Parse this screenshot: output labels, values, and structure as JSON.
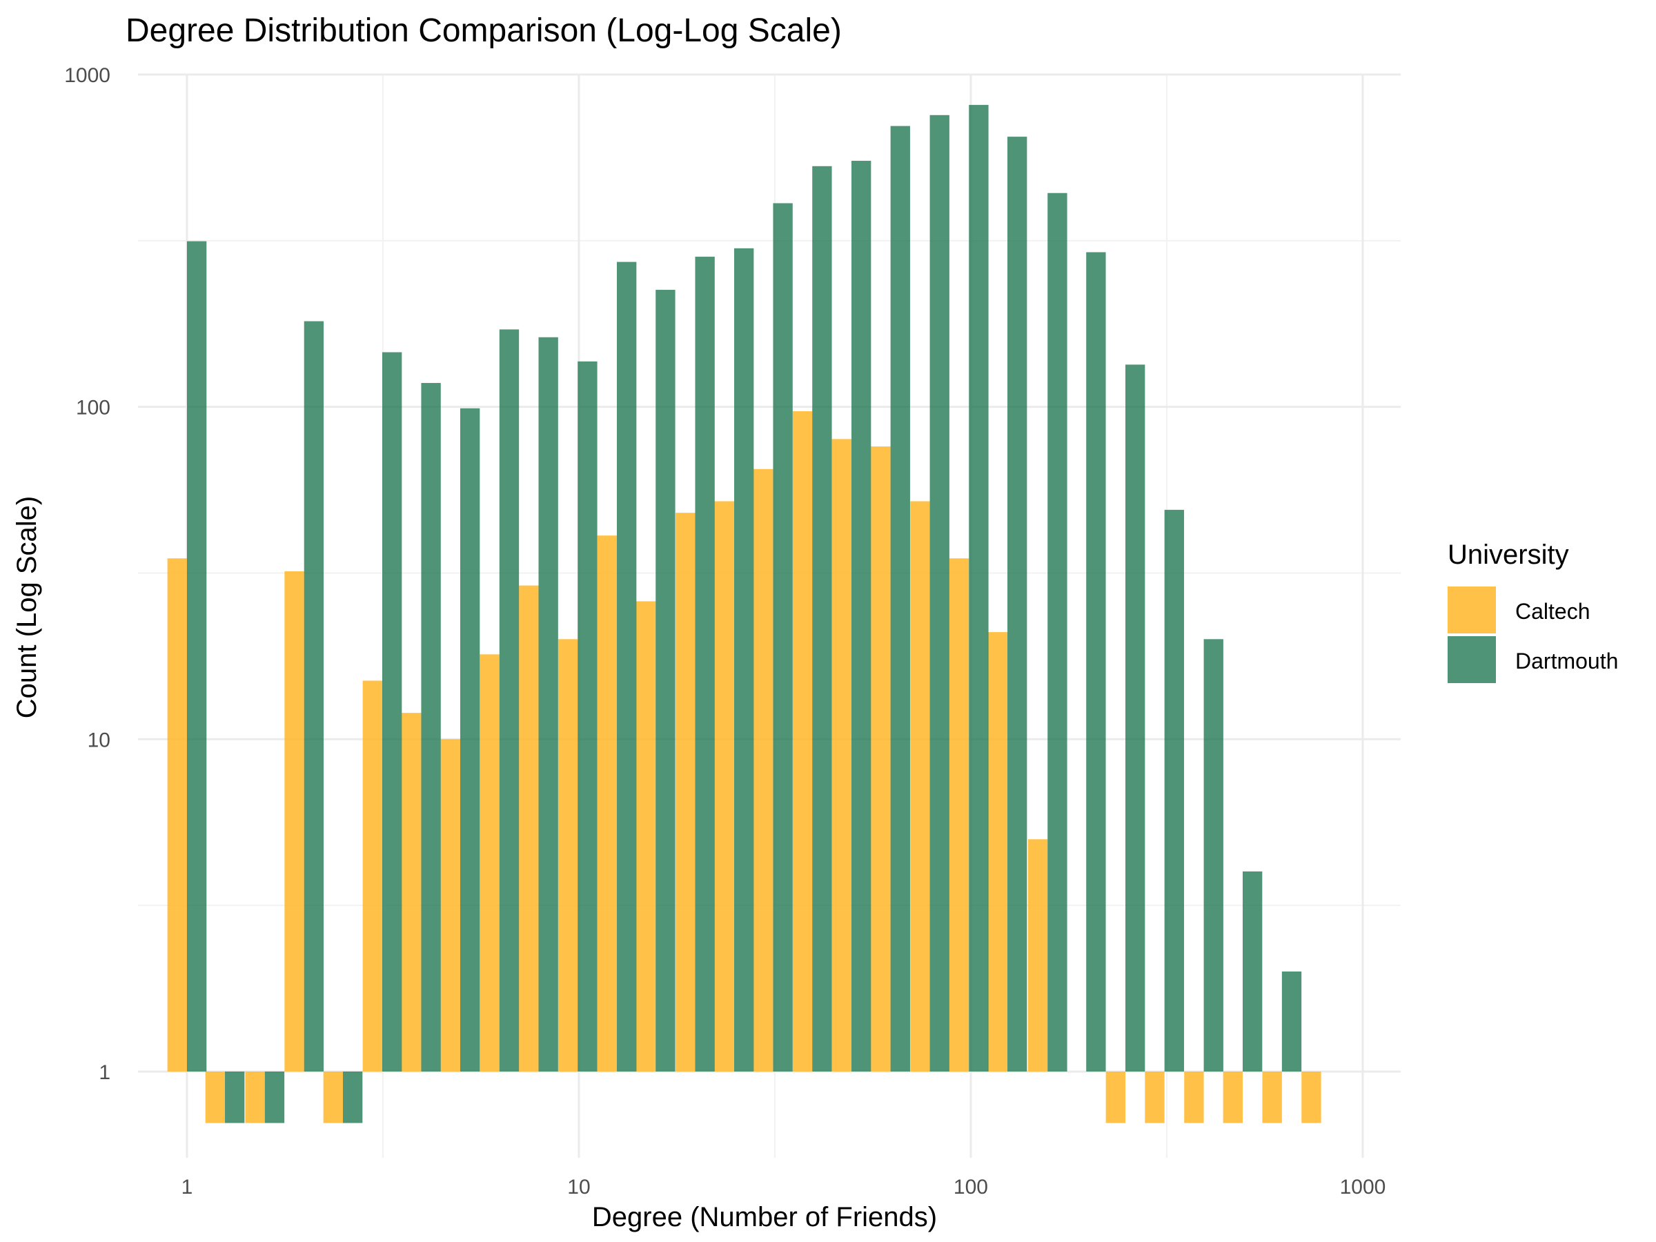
{
  "chart_data": {
    "type": "bar",
    "title": "Degree Distribution Comparison (Log-Log Scale)",
    "xlabel": "Degree (Number of Friends)",
    "ylabel": "Count (Log Scale)",
    "x_scale": "log10",
    "y_scale": "log10",
    "xlim": [
      0.75,
      1250
    ],
    "ylim": [
      0.55,
      1000
    ],
    "x_ticks": [
      "1",
      "10",
      "100",
      "1000"
    ],
    "y_ticks": [
      "1",
      "10",
      "100",
      "1000"
    ],
    "grid": true,
    "legend_title": "University",
    "legend_position": "right",
    "bin_centers": [
      1,
      1.25,
      1.58,
      1.99,
      2.5,
      3.15,
      3.96,
      4.98,
      6.27,
      7.89,
      9.93,
      12.5,
      15.7,
      19.8,
      24.9,
      31.3,
      39.4,
      49.6,
      62.4,
      78.6,
      98.9,
      124,
      157,
      197,
      248,
      312,
      393,
      494,
      622,
      783,
      985
    ],
    "series": [
      {
        "name": "Caltech",
        "color": "#FFB627",
        "values": [
          35,
          0.7,
          0.7,
          32,
          0.7,
          15,
          12,
          10,
          18,
          29,
          20,
          41,
          26,
          48,
          52,
          65,
          97,
          80,
          76,
          52,
          35,
          21,
          5,
          null,
          0.7,
          0.7,
          0.7,
          0.7,
          0.7,
          0.7,
          null
        ]
      },
      {
        "name": "Dartmouth",
        "color": "#15704A",
        "values": [
          315,
          0.7,
          0.7,
          181,
          0.7,
          146,
          118,
          99,
          171,
          162,
          137,
          273,
          225,
          283,
          300,
          410,
          530,
          550,
          700,
          755,
          810,
          650,
          440,
          292,
          134,
          49,
          20,
          4,
          2,
          null,
          null
        ]
      }
    ]
  }
}
